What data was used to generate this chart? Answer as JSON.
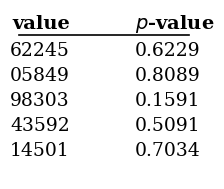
{
  "col1_header": "value",
  "col2_header": "p-value",
  "col1_values": [
    "62245",
    "05849",
    "98303",
    "43592",
    "14501"
  ],
  "col2_values": [
    "0.6229",
    "0.8089",
    "0.1591",
    "0.5091",
    "0.7034"
  ],
  "bg_color": "#ffffff",
  "text_color": "#000000",
  "font_size": 13.5,
  "header_font_size": 14
}
